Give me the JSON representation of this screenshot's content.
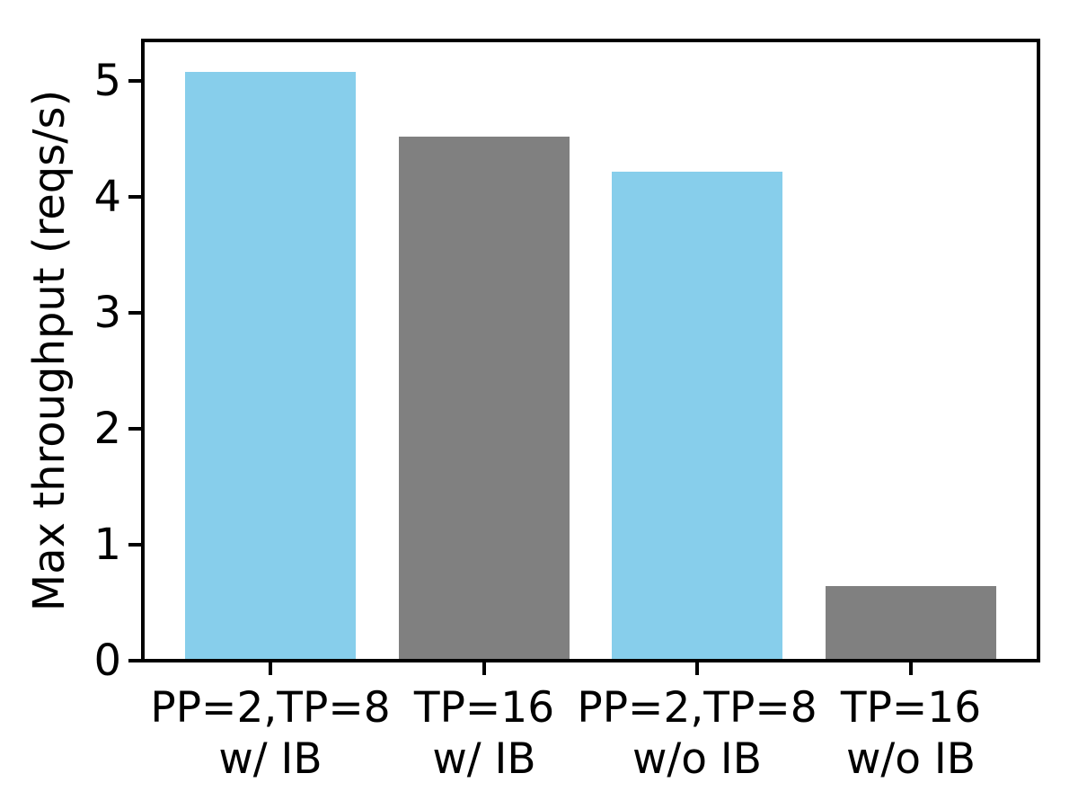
{
  "chart_data": {
    "type": "bar",
    "title": "",
    "xlabel": "",
    "ylabel": "Max throughput (reqs/s)",
    "categories": [
      "PP=2,TP=8\nw/ IB",
      "TP=16\nw/ IB",
      "PP=2,TP=8\nw/o IB",
      "TP=16\nw/o IB"
    ],
    "values": [
      5.08,
      4.52,
      4.22,
      0.64
    ],
    "bar_colors": [
      "#87CEEB",
      "#808080",
      "#87CEEB",
      "#808080"
    ],
    "yticks": [
      0,
      1,
      2,
      3,
      4,
      5
    ],
    "ytick_labels": [
      "0",
      "1",
      "2",
      "3",
      "4",
      "5"
    ],
    "ylim": [
      0,
      5.35
    ],
    "grid": false,
    "legend": null,
    "frame": "full-box",
    "colors": {
      "bar_blue": "#87CEEB",
      "bar_gray": "#808080",
      "axis": "#000000",
      "background": "#FFFFFF"
    }
  }
}
